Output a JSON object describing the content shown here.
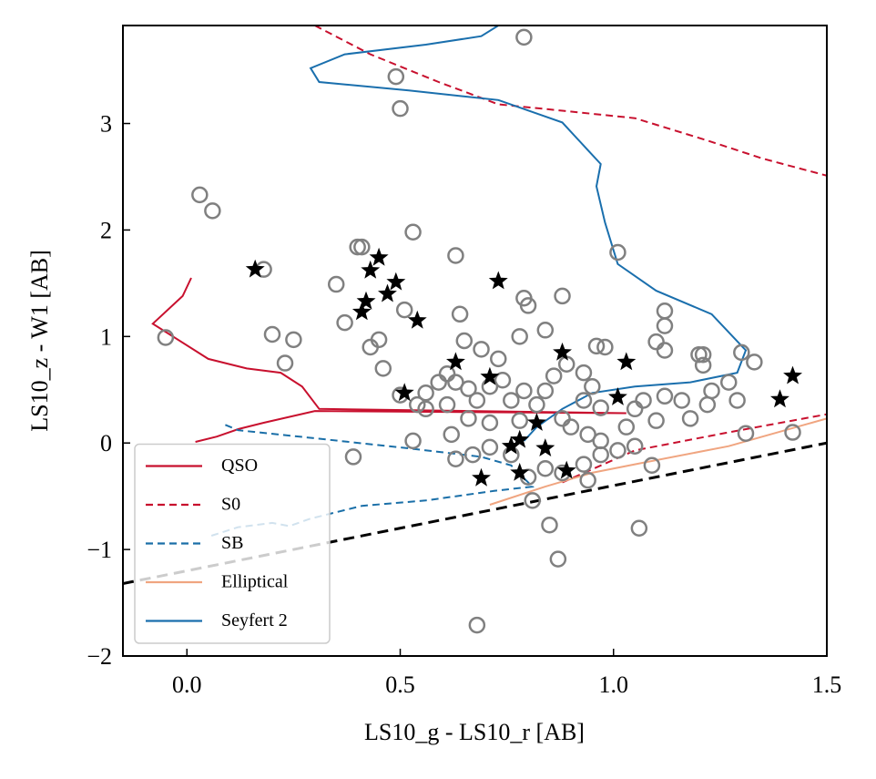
{
  "chart_data": {
    "type": "scatter",
    "xlabel": "LS10_g - LS10_r [AB]",
    "ylabel": "LS10_z - W1 [AB]",
    "xlim": [
      -0.15,
      1.5
    ],
    "ylim": [
      -2,
      3.92
    ],
    "xticks": [
      {
        "value": 0,
        "label": "0.0"
      },
      {
        "value": 0.5,
        "label": "0.5"
      },
      {
        "value": 1,
        "label": "1.0"
      },
      {
        "value": 1.5,
        "label": "1.5"
      }
    ],
    "yticks": [
      {
        "value": -2,
        "label": "−2"
      },
      {
        "value": -1,
        "label": "−1"
      },
      0,
      1,
      2,
      3
    ],
    "legend": "lower left",
    "series": [
      {
        "marker": "open-circle",
        "color": "#808080",
        "x": [
          -0.05,
          0.03,
          0.06,
          0.18,
          0.2,
          0.25,
          0.23,
          0.35,
          0.37,
          0.4,
          0.41,
          0.49,
          0.5,
          0.79,
          0.53,
          0.63,
          1.01,
          0.45,
          0.43,
          0.46,
          0.51,
          0.64,
          0.39,
          0.53,
          0.85,
          0.87,
          0.68,
          1.06,
          0.88,
          0.79,
          0.8,
          0.78,
          0.84,
          0.69,
          0.65,
          0.73,
          0.61,
          0.59,
          0.56,
          0.54,
          0.5,
          0.63,
          0.66,
          0.68,
          0.71,
          0.74,
          0.76,
          0.79,
          0.82,
          0.84,
          0.86,
          0.89,
          0.93,
          0.96,
          0.98,
          0.93,
          0.95,
          0.97,
          0.88,
          0.9,
          0.94,
          0.97,
          1.03,
          1.05,
          1.07,
          1.1,
          1.12,
          1.12,
          1.12,
          1.1,
          1.12,
          1.2,
          1.21,
          1.21,
          1.16,
          1.18,
          1.22,
          1.27,
          1.23,
          1.29,
          1.3,
          1.33,
          1.31,
          1.42,
          1.05,
          1.09,
          1.01,
          0.97,
          0.93,
          0.94,
          0.88,
          0.84,
          0.8,
          0.81,
          0.76,
          0.71,
          0.67,
          0.63,
          0.62,
          0.66,
          0.71,
          0.78,
          0.61,
          0.56
        ],
        "y": [
          0.99,
          2.33,
          2.18,
          1.63,
          1.02,
          0.97,
          0.75,
          1.49,
          1.13,
          1.84,
          1.84,
          3.44,
          3.14,
          3.81,
          1.98,
          1.76,
          1.79,
          0.97,
          0.9,
          0.7,
          1.25,
          1.21,
          -0.13,
          0.02,
          -0.77,
          -1.09,
          -1.71,
          -0.8,
          1.38,
          1.36,
          1.29,
          1.0,
          1.06,
          0.88,
          0.96,
          0.79,
          0.65,
          0.57,
          0.47,
          0.36,
          0.45,
          0.57,
          0.51,
          0.4,
          0.53,
          0.59,
          0.4,
          0.49,
          0.36,
          0.49,
          0.63,
          0.74,
          0.66,
          0.91,
          0.9,
          0.4,
          0.53,
          0.33,
          0.23,
          0.15,
          0.08,
          0.02,
          0.15,
          0.32,
          0.4,
          0.21,
          0.44,
          1.24,
          1.1,
          0.95,
          0.87,
          0.83,
          0.83,
          0.73,
          0.4,
          0.23,
          0.36,
          0.57,
          0.49,
          0.4,
          0.85,
          0.76,
          0.09,
          0.1,
          -0.03,
          -0.21,
          -0.07,
          -0.11,
          -0.2,
          -0.35,
          -0.28,
          -0.24,
          -0.32,
          -0.54,
          -0.11,
          -0.04,
          -0.11,
          -0.15,
          0.08,
          0.23,
          0.19,
          0.21,
          0.36,
          0.32
        ]
      },
      {
        "marker": "star",
        "color": "#000000",
        "x": [
          0.16,
          0.45,
          0.43,
          0.49,
          0.47,
          0.42,
          0.41,
          0.54,
          0.73,
          0.88,
          1.03,
          0.63,
          0.71,
          0.51,
          1.01,
          1.42,
          1.39,
          0.82,
          0.78,
          0.76,
          0.84,
          0.69,
          0.78,
          0.89
        ],
        "y": [
          1.63,
          1.74,
          1.62,
          1.51,
          1.4,
          1.33,
          1.23,
          1.15,
          1.52,
          0.85,
          0.76,
          0.76,
          0.62,
          0.47,
          0.43,
          0.63,
          0.41,
          0.19,
          0.03,
          -0.03,
          -0.05,
          -0.33,
          -0.28,
          -0.26
        ]
      },
      {
        "name": "QSO",
        "linestyle": "solid",
        "color": "#c8102e",
        "x": [
          0.01,
          -0.01,
          -0.08,
          0.05,
          0.14,
          0.22,
          0.27,
          0.31,
          1.03,
          0.3,
          0.18,
          0.12,
          0.07,
          0.02
        ],
        "y": [
          1.55,
          1.38,
          1.12,
          0.79,
          0.7,
          0.66,
          0.53,
          0.32,
          0.28,
          0.3,
          0.19,
          0.13,
          0.06,
          0.01
        ]
      },
      {
        "name": "S0",
        "linestyle": "dashed",
        "color": "#c8102e",
        "x": [
          0.3,
          0.43,
          0.59,
          0.73,
          0.88,
          1.05,
          1.22,
          1.35,
          1.5,
          null,
          0.88,
          1.05,
          1.27,
          1.5
        ],
        "y": [
          3.92,
          3.65,
          3.39,
          3.18,
          3.12,
          3.05,
          2.84,
          2.67,
          2.51,
          null,
          -0.37,
          -0.07,
          0.1,
          0.27
        ]
      },
      {
        "name": "SB",
        "linestyle": "dashed",
        "color": "#1a6fa8",
        "x": [
          0.09,
          0.12,
          0.31,
          0.52,
          0.69,
          0.76,
          0.81,
          0.72,
          0.56,
          0.41,
          0.29,
          0.24,
          0.2,
          0.12,
          0.05
        ],
        "y": [
          0.17,
          0.12,
          0.04,
          -0.05,
          -0.13,
          -0.21,
          -0.41,
          -0.45,
          -0.54,
          -0.59,
          -0.71,
          -0.78,
          -0.75,
          -0.79,
          -0.88
        ]
      },
      {
        "name": "Elliptical",
        "linestyle": "solid",
        "color": "#f0a580",
        "x": [
          0.71,
          0.84,
          0.95,
          1.05,
          1.27,
          1.5
        ],
        "y": [
          -0.58,
          -0.41,
          -0.28,
          -0.2,
          -0.03,
          0.23
        ]
      },
      {
        "name": "Seyfert 2",
        "linestyle": "solid",
        "color": "#1a6fad",
        "x": [
          0.73,
          0.69,
          0.56,
          0.37,
          0.29,
          0.31,
          0.52,
          0.73,
          0.88,
          0.94,
          0.97,
          0.96,
          0.98,
          1.01,
          1.1,
          1.23,
          1.31,
          1.29,
          1.18,
          1.05,
          0.95,
          0.88,
          0.82,
          0.79
        ],
        "y": [
          3.92,
          3.82,
          3.74,
          3.65,
          3.52,
          3.39,
          3.31,
          3.22,
          3.01,
          2.75,
          2.62,
          2.41,
          2.07,
          1.68,
          1.43,
          1.21,
          0.87,
          0.66,
          0.57,
          0.53,
          0.47,
          0.32,
          0.15,
          0.02
        ]
      },
      {
        "linestyle": "dashed",
        "color": "#000000",
        "width": 3,
        "x": [
          -0.15,
          1.5
        ],
        "y": [
          -1.32,
          0
        ]
      }
    ]
  }
}
